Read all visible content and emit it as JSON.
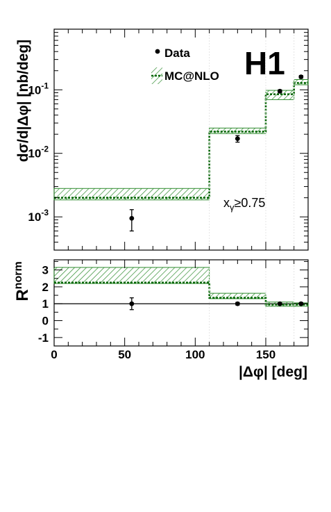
{
  "experiment_label": "H1",
  "legend": {
    "data_label": "Data",
    "mc_label": "MC@NLO"
  },
  "cut_label": {
    "main": "x",
    "sub": "γ",
    "rest": "≥0.75"
  },
  "axes": {
    "top_ylabel": "dσ/d|Δφ| [nb/deg]",
    "bottom_ylabel_main": "R",
    "bottom_ylabel_sup": "norm",
    "xlabel": "|Δφ| [deg]"
  },
  "colors": {
    "mc_band": "#2e8b2e",
    "mc_line": "#006400",
    "data": "#000000"
  },
  "chart_data": [
    {
      "type": "line",
      "panel": "top",
      "scale": "log",
      "xlim": [
        0,
        180
      ],
      "ylim": [
        0.0003,
        0.9
      ],
      "xticks": [
        0,
        50,
        100,
        150
      ],
      "ytick_labels": [
        "10",
        "10",
        "10"
      ],
      "ytick_exponents": [
        "-3",
        "-2",
        "-1"
      ],
      "ytick_values": [
        0.001,
        0.01,
        0.1
      ],
      "bins": [
        [
          0,
          110
        ],
        [
          110,
          150
        ],
        [
          150,
          170
        ],
        [
          170,
          180
        ]
      ],
      "series": [
        {
          "name": "MC@NLO",
          "values": [
            0.002,
            0.022,
            0.085,
            0.128
          ],
          "band_low": [
            0.00185,
            0.0205,
            0.07,
            0.12
          ],
          "band_high": [
            0.0028,
            0.025,
            0.098,
            0.145
          ]
        },
        {
          "name": "Data",
          "x": [
            55,
            130,
            160,
            175
          ],
          "values": [
            0.00095,
            0.017,
            0.095,
            0.16
          ],
          "err_low": [
            0.0006,
            0.015,
            0.09,
            0.152
          ],
          "err_high": [
            0.0013,
            0.019,
            0.1,
            0.168
          ]
        }
      ]
    },
    {
      "type": "line",
      "panel": "bottom",
      "xlim": [
        0,
        180
      ],
      "ylim": [
        -1.5,
        3.6
      ],
      "xticks": [
        0,
        50,
        100,
        150
      ],
      "yticks": [
        -1,
        0,
        1,
        2,
        3
      ],
      "reference_line": 1,
      "bins": [
        [
          0,
          110
        ],
        [
          110,
          150
        ],
        [
          150,
          170
        ],
        [
          170,
          180
        ]
      ],
      "series": [
        {
          "name": "MC@NLO",
          "values": [
            2.25,
            1.35,
            0.95,
            0.95
          ],
          "band_low": [
            2.2,
            1.3,
            0.85,
            0.85
          ],
          "band_high": [
            3.15,
            1.62,
            1.1,
            1.05
          ]
        },
        {
          "name": "Data",
          "x": [
            55,
            130,
            160,
            175
          ],
          "values": [
            1.0,
            1.0,
            1.0,
            1.0
          ],
          "err_low": [
            0.65,
            0.92,
            0.95,
            0.93
          ],
          "err_high": [
            1.35,
            1.08,
            1.05,
            1.07
          ]
        }
      ]
    }
  ]
}
